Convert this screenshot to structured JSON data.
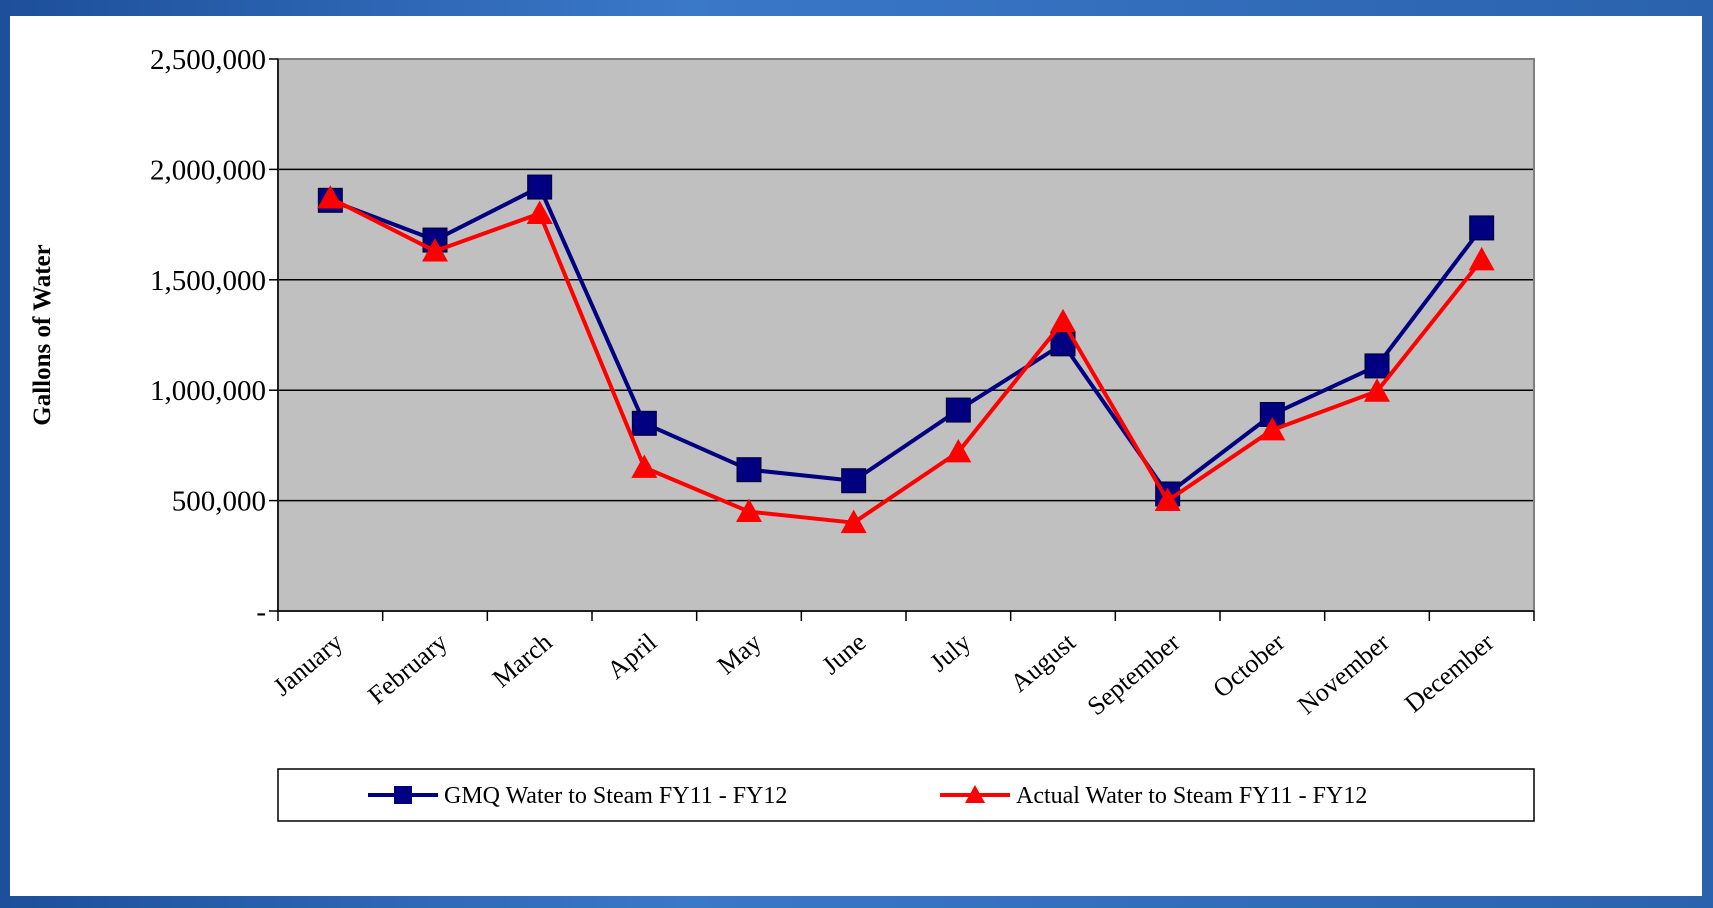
{
  "chart_data": {
    "type": "line",
    "title": "",
    "xlabel": "",
    "ylabel": "Gallons of Water",
    "ylim": [
      0,
      2500000
    ],
    "yticks": [
      0,
      500000,
      1000000,
      1500000,
      2000000,
      2500000
    ],
    "ytick_labels": [
      "-",
      "500,000",
      "1,000,000",
      "1,500,000",
      "2,000,000",
      "2,500,000"
    ],
    "grid": true,
    "plot_background": "#c0c0c0",
    "legend_position": "bottom",
    "categories": [
      "January",
      "February",
      "March",
      "April",
      "May",
      "June",
      "July",
      "August",
      "September",
      "October",
      "November",
      "December"
    ],
    "series": [
      {
        "name": "GMQ Water to Steam FY11 - FY12",
        "color": "#000080",
        "marker": "square",
        "values": [
          1860000,
          1680000,
          1920000,
          850000,
          640000,
          590000,
          910000,
          1210000,
          530000,
          890000,
          1110000,
          1735000
        ]
      },
      {
        "name": "Actual Water to Steam FY11 - FY12",
        "color": "#ff0000",
        "marker": "triangle",
        "values": [
          1870000,
          1630000,
          1800000,
          650000,
          450000,
          400000,
          720000,
          1310000,
          500000,
          820000,
          995000,
          1590000
        ]
      }
    ]
  }
}
